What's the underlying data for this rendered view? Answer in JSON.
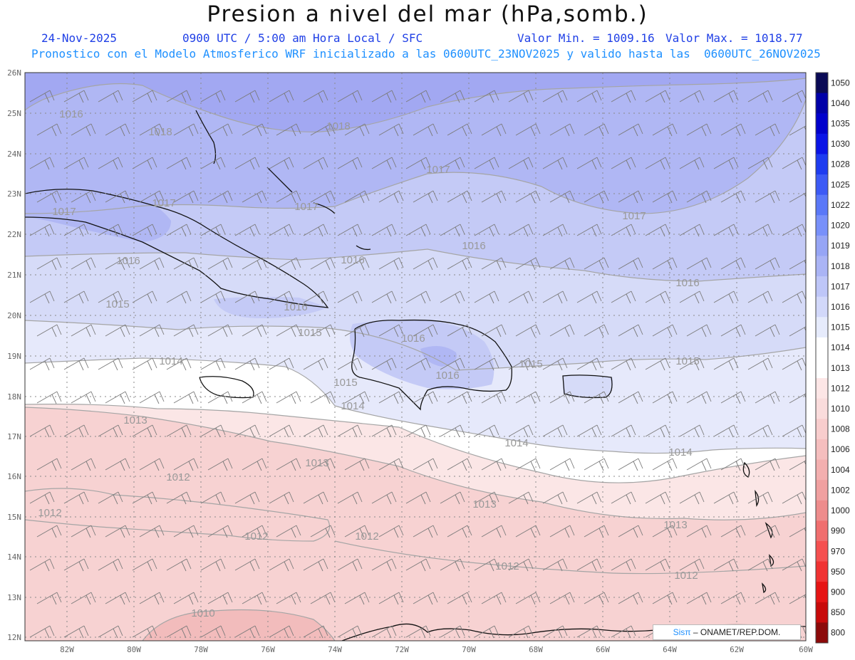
{
  "title": "Presion a nivel del mar (hPa,somb.)",
  "date": "24-Nov-2025",
  "time_info": "0900 UTC / 5:00 am Hora Local / SFC",
  "min_label": "Valor Min. = 1009.16",
  "max_label": "Valor Max. = 1018.77",
  "forecast_line": "Pronostico con el Modelo Atmosferico WRF inicializado a las 0600UTC_23NOV2025 y valido hasta las  0600UTC_26NOV2025",
  "lat_labels": [
    "26N",
    "25N",
    "24N",
    "23N",
    "22N",
    "21N",
    "20N",
    "19N",
    "18N",
    "17N",
    "16N",
    "15N",
    "14N",
    "13N",
    "12N"
  ],
  "lon_labels": [
    "82W",
    "80W",
    "78W",
    "76W",
    "74W",
    "72W",
    "70W",
    "68W",
    "66W",
    "64W",
    "62W",
    "60W"
  ],
  "colorbar": {
    "levels": [
      "1050",
      "1040",
      "1035",
      "1030",
      "1028",
      "1025",
      "1022",
      "1020",
      "1019",
      "1018",
      "1017",
      "1016",
      "1015",
      "1014",
      "1013",
      "1012",
      "1010",
      "1008",
      "1006",
      "1004",
      "1002",
      "1000",
      "990",
      "970",
      "950",
      "900",
      "850",
      "800"
    ],
    "colors": [
      "#0a0a55",
      "#0000a8",
      "#0000cc",
      "#0a14e6",
      "#1e3cf0",
      "#3c5af5",
      "#5a78f8",
      "#7890fa",
      "#96a5f5",
      "#aab4f5",
      "#bec6f8",
      "#d2d8fa",
      "#e6ebfc",
      "#ffffff",
      "#ffffff",
      "#fde6e6",
      "#fadcdc",
      "#f8cdcd",
      "#f5bebe",
      "#f3afaf",
      "#f0a0a0",
      "#ee8c8c",
      "#f06e6e",
      "#f55050",
      "#f03232",
      "#e61414",
      "#c80a0a",
      "#8c0a0a"
    ]
  },
  "contour_labels": [
    "1016",
    "1018",
    "1018",
    "1017",
    "1017",
    "1017",
    "1017",
    "1017",
    "1016",
    "1016",
    "1016",
    "1016",
    "1016",
    "1015",
    "1015",
    "1016",
    "1016",
    "1015",
    "1015",
    "1014",
    "1015",
    "1014",
    "1013",
    "1014",
    "1014",
    "1013",
    "1012",
    "1013",
    "1013",
    "1012",
    "1012",
    "1012",
    "1012",
    "1012",
    "1010"
  ],
  "credit": {
    "brand": "Sisπ",
    "text": " – ONAMET/REP.DOM."
  }
}
